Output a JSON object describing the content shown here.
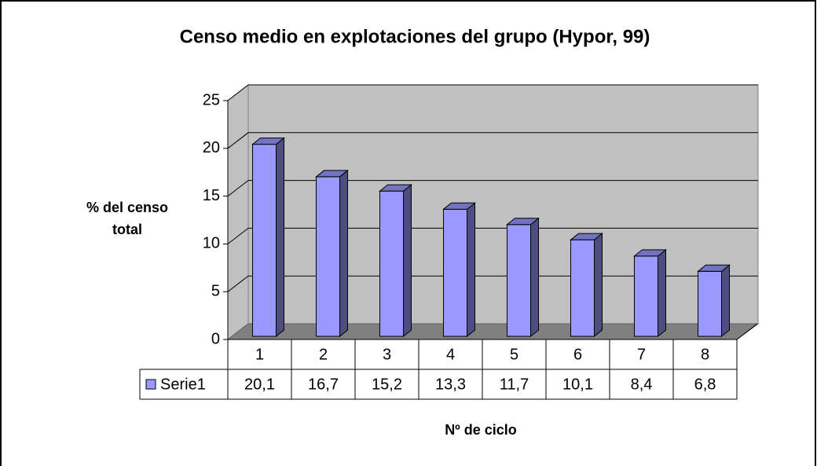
{
  "chart_data": {
    "type": "bar3d",
    "title": "Censo medio en explotaciones del grupo (Hypor, 99)",
    "y_label": "% del censo total",
    "x_label": "Nº de ciclo",
    "categories": [
      "1",
      "2",
      "3",
      "4",
      "5",
      "6",
      "7",
      "8"
    ],
    "series": [
      {
        "name": "Serie1",
        "color": "#9999ff",
        "values": [
          20.1,
          16.7,
          15.2,
          13.3,
          11.7,
          10.1,
          8.4,
          6.8
        ],
        "value_labels": [
          "20,1",
          "16,7",
          "15,2",
          "13,3",
          "11,7",
          "10,1",
          "8,4",
          "6,8"
        ]
      }
    ],
    "ylim": [
      0,
      25
    ],
    "yticks": [
      0,
      5,
      10,
      15,
      20,
      25
    ],
    "grid": true
  }
}
